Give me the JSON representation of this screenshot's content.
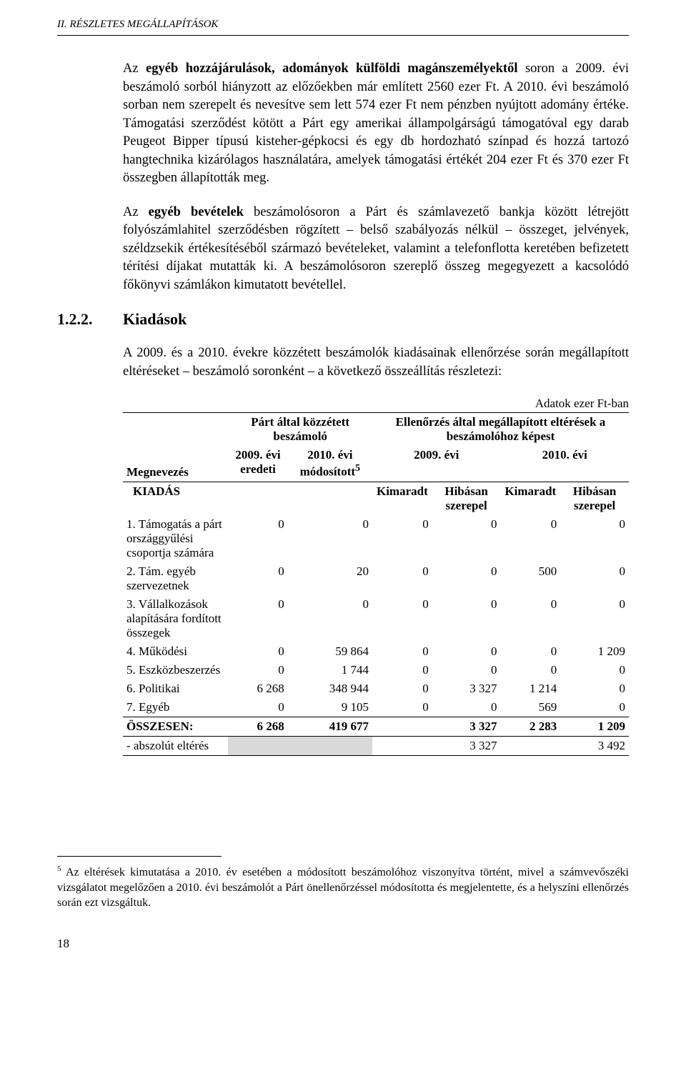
{
  "header": {
    "running_title": "II. RÉSZLETES MEGÁLLAPÍTÁSOK"
  },
  "para1": {
    "lead_bold": "egyéb hozzájárulások, adományok külföldi magánszemélyektől",
    "rest": " soron a 2009. évi beszámoló sorból hiányzott az előzőekben már említett 2560 ezer Ft. A 2010. évi beszámoló sorban nem szerepelt és nevesítve sem lett 574 ezer Ft nem pénzben nyújtott adomány értéke. Támogatási szerződést kötött a Párt egy amerikai állampolgárságú támogatóval egy darab Peugeot Bipper típusú kisteher-gépkocsi és egy db hordozható színpad és hozzá tartozó hangtechnika kizárólagos használatára, amelyek támogatási értékét 204 ezer Ft és 370 ezer Ft összegben állapították meg."
  },
  "para2": {
    "lead_bold": "egyéb bevételek",
    "rest": " beszámolósoron a Párt és számlavezető bankja között létrejött folyószámlahitel szerződésben rögzített – belső szabályozás nélkül – összeget, jelvények, széldzsekik értékesítéséből származó bevételeket, valamint a telefonflotta keretében befizetett térítési díjakat mutatták ki. A beszámolósoron szereplő összeg megegyezett a kacsolódó főkönyvi számlákon kimutatott bevétellel."
  },
  "section": {
    "num": "1.2.2.",
    "title": "Kiadások"
  },
  "para3": "A 2009. és a 2010. évekre közzétett beszámolók kiadásainak ellenőrzése során megállapított eltéréseket – beszámoló soronként – a következő összeállítás részletezi:",
  "table": {
    "units_label": "Adatok ezer Ft-ban",
    "header": {
      "col_name": "Megnevezés",
      "group1": "Párt által közzétett beszámoló",
      "group2": "Ellenőrzés által megállapított eltérések a beszámolóhoz képest",
      "g1_c1": "2009. évi eredeti",
      "g1_c2": "2010. évi módosított",
      "g1_c2_fn": "5",
      "g2_c1": "2009. évi",
      "g2_c2": "2010. évi",
      "kiadas": "KIADÁS",
      "sub_kimaradt": "Kimaradt",
      "sub_hibasan": "Hibásan szerepel"
    },
    "rows": [
      {
        "name": "1. Támogatás a párt országgyűlési csoportja számára",
        "c1": "0",
        "c2": "0",
        "c3": "0",
        "c4": "0",
        "c5": "0",
        "c6": "0"
      },
      {
        "name": "2. Tám. egyéb szervezetnek",
        "c1": "0",
        "c2": "20",
        "c3": "0",
        "c4": "0",
        "c5": "500",
        "c6": "0"
      },
      {
        "name": "3. Vállalkozások alapítására fordított összegek",
        "c1": "0",
        "c2": "0",
        "c3": "0",
        "c4": "0",
        "c5": "0",
        "c6": "0"
      },
      {
        "name": "4. Működési",
        "c1": "0",
        "c2": "59 864",
        "c3": "0",
        "c4": "0",
        "c5": "0",
        "c6": "1 209"
      },
      {
        "name": "5. Eszközbeszerzés",
        "c1": "0",
        "c2": "1 744",
        "c3": "0",
        "c4": "0",
        "c5": "0",
        "c6": "0"
      },
      {
        "name": "6. Politikai",
        "c1": "6 268",
        "c2": "348 944",
        "c3": "0",
        "c4": "3 327",
        "c5": "1 214",
        "c6": "0"
      },
      {
        "name": "7. Egyéb",
        "c1": "0",
        "c2": "9 105",
        "c3": "0",
        "c4": "0",
        "c5": "569",
        "c6": "0"
      }
    ],
    "sum": {
      "label": "ÖSSZESEN:",
      "c1": "6 268",
      "c2": "419 677",
      "c3": "",
      "c4": "3 327",
      "c5": "2 283",
      "c6": "1 209"
    },
    "abs": {
      "label": "- abszolút eltérés",
      "v1": "3 327",
      "v2": "3 492"
    }
  },
  "footnote": {
    "marker": "5",
    "text": " Az eltérések kimutatása a 2010. év esetében a módosított beszámolóhoz viszonyítva történt, mivel a számvevőszéki vizsgálatot megelőzően a 2010. évi beszámolót a Párt önellenőrzéssel módosította és megjelentette, és a helyszíni ellenőrzés során ezt vizsgáltuk."
  },
  "page_number": "18"
}
